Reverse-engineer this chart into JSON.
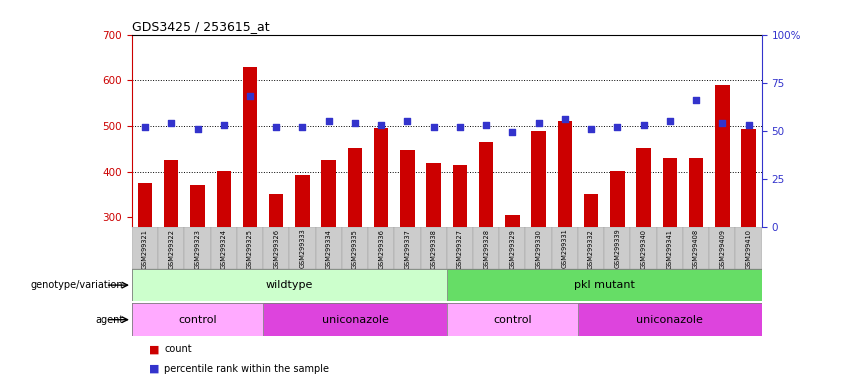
{
  "title": "GDS3425 / 253615_at",
  "samples": [
    "GSM299321",
    "GSM299322",
    "GSM299323",
    "GSM299324",
    "GSM299325",
    "GSM299326",
    "GSM299333",
    "GSM299334",
    "GSM299335",
    "GSM299336",
    "GSM299337",
    "GSM299338",
    "GSM299327",
    "GSM299328",
    "GSM299329",
    "GSM299330",
    "GSM299331",
    "GSM299332",
    "GSM299339",
    "GSM299340",
    "GSM299341",
    "GSM299408",
    "GSM299409",
    "GSM299410"
  ],
  "counts": [
    375,
    425,
    370,
    402,
    628,
    352,
    393,
    425,
    452,
    495,
    447,
    420,
    415,
    465,
    305,
    490,
    510,
    352,
    402,
    452,
    430,
    430,
    590,
    493
  ],
  "percentiles": [
    52,
    54,
    51,
    53,
    68,
    52,
    52,
    55,
    54,
    53,
    55,
    52,
    52,
    53,
    49,
    54,
    56,
    51,
    52,
    53,
    55,
    66,
    54,
    53
  ],
  "ylim_left": [
    280,
    700
  ],
  "ylim_right": [
    0,
    100
  ],
  "yticks_left": [
    300,
    400,
    500,
    600,
    700
  ],
  "yticks_right": [
    0,
    25,
    50,
    75,
    100
  ],
  "ytick_right_labels": [
    "0",
    "25",
    "50",
    "75",
    "100%"
  ],
  "bar_color": "#cc0000",
  "dot_color": "#3333cc",
  "grid_color": "#000000",
  "plot_bg": "#ffffff",
  "tick_bg": "#d0d0d0",
  "genotype_labels": [
    {
      "label": "wildtype",
      "start": 0,
      "end": 12,
      "color": "#ccffcc"
    },
    {
      "label": "pkl mutant",
      "start": 12,
      "end": 24,
      "color": "#66dd66"
    }
  ],
  "agent_labels": [
    {
      "label": "control",
      "start": 0,
      "end": 5,
      "color": "#ffaaff"
    },
    {
      "label": "uniconazole",
      "start": 5,
      "end": 12,
      "color": "#dd44dd"
    },
    {
      "label": "control",
      "start": 12,
      "end": 17,
      "color": "#ffaaff"
    },
    {
      "label": "uniconazole",
      "start": 17,
      "end": 24,
      "color": "#dd44dd"
    }
  ],
  "legend_items": [
    {
      "label": "count",
      "color": "#cc0000"
    },
    {
      "label": "percentile rank within the sample",
      "color": "#3333cc"
    }
  ]
}
